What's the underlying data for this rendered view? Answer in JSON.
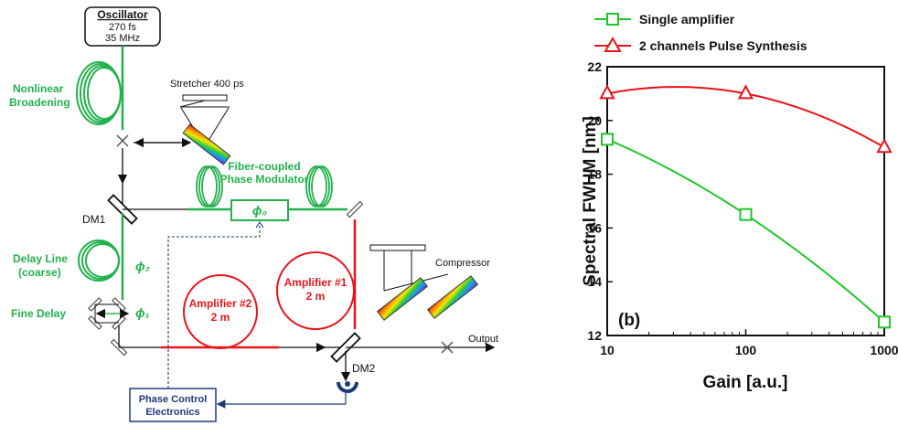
{
  "diagram": {
    "oscillator": {
      "title": "Oscillator",
      "line1": "270 fs",
      "line2": "35 MHz"
    },
    "nonlinear": {
      "line1": "Nonlinear",
      "line2": "Broadening"
    },
    "stretcher": "Stretcher 400 ps",
    "modulator": {
      "line1": "Fiber-coupled",
      "line2": "Phase Modulator",
      "phase": "ϕ₀"
    },
    "dm1": "DM1",
    "dm2": "DM2",
    "delay_line": {
      "line1": "Delay Line",
      "line2": "(coarse)",
      "phase": "ϕ₂"
    },
    "fine_delay": {
      "label": "Fine Delay",
      "phase": "ϕ₁"
    },
    "amp1": {
      "line1": "Amplifier #1",
      "line2": "2 m"
    },
    "amp2": {
      "line1": "Amplifier #2",
      "line2": "2 m"
    },
    "compressor": "Compressor",
    "output": "Output",
    "phase_control": {
      "line1": "Phase Control",
      "line2": "Electronics"
    }
  },
  "chart_data": {
    "type": "scatter",
    "panel_label": "(b)",
    "xlabel": "Gain  [a.u.]",
    "ylabel": "Spectral FWHM  [nm]",
    "x_scale": "log",
    "xlim": [
      10,
      1000
    ],
    "ylim": [
      12,
      22
    ],
    "xticks": [
      10,
      100,
      1000
    ],
    "xtick_labels": [
      "10",
      "100",
      "1000"
    ],
    "yticks": [
      12,
      14,
      16,
      18,
      20,
      22
    ],
    "legend_position": "top (outside plot)",
    "series": [
      {
        "name": "Single amplifier",
        "color": "#22c52a",
        "marker": "square",
        "x": [
          10,
          100,
          1000
        ],
        "y": [
          19.3,
          16.5,
          12.5
        ]
      },
      {
        "name": "2 channels Pulse Synthesis",
        "color": "#e8141b",
        "marker": "triangle",
        "x": [
          10,
          100,
          1000
        ],
        "y": [
          21.0,
          21.0,
          19.0
        ]
      }
    ]
  },
  "colors": {
    "fiber_green": "#22b14c",
    "fiber_red": "#e8141b",
    "control_blue": "#1f3a7a"
  }
}
